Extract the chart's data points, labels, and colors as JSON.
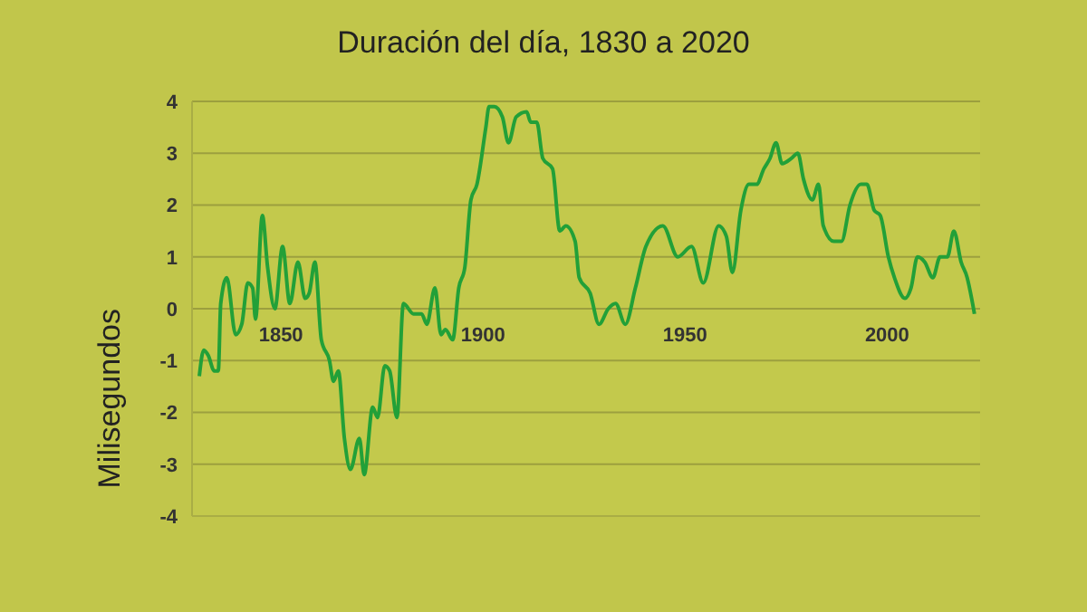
{
  "chart_data": {
    "type": "line",
    "title": "Duración del día, 1830 a 2020",
    "ylabel": "Milisegundos",
    "x": [
      1829.8,
      1830.9,
      1832,
      1833.5,
      1834.5,
      1835.1,
      1836.6,
      1838.8,
      1840.3,
      1841.8,
      1843,
      1843.7,
      1845.4,
      1846.7,
      1848.5,
      1850.4,
      1852.2,
      1854.2,
      1856,
      1857,
      1858.4,
      1860,
      1862,
      1863,
      1864.2,
      1865.7,
      1867.2,
      1869.4,
      1870.6,
      1872.7,
      1873.9,
      1875.7,
      1876.9,
      1878.7,
      1880.3,
      1882.8,
      1884.8,
      1886.1,
      1888.1,
      1889.6,
      1890.7,
      1892.5,
      1894,
      1895.5,
      1897,
      1898.5,
      1900.7,
      1901.5,
      1902.8,
      1904.8,
      1906.3,
      1908.2,
      1910.8,
      1911.8,
      1913.3,
      1914.8,
      1917.2,
      1919,
      1920.5,
      1922.8,
      1923.8,
      1926.5,
      1928.7,
      1931,
      1932.8,
      1935.2,
      1937.7,
      1940.3,
      1944.5,
      1948.2,
      1951.6,
      1954.5,
      1958.3,
      1960.2,
      1961.7,
      1963.8,
      1965.8,
      1967.7,
      1969.5,
      1971,
      1972.5,
      1974,
      1976.3,
      1977.9,
      1979.3,
      1981.5,
      1983,
      1984.2,
      1986.8,
      1988.7,
      1990.8,
      1993.5,
      1995,
      1996.8,
      1998.3,
      2000.3,
      2001.8,
      2004.4,
      2005.9,
      2007.5,
      2009.3,
      2011.3,
      2013.1,
      2014.9,
      2016.5,
      2018.3,
      2019.8,
      2020.9,
      2021.6
    ],
    "series": [
      {
        "color": "#22a038",
        "values": [
          -1.3,
          -0.8,
          -0.9,
          -1.2,
          -1.2,
          0.1,
          0.6,
          -0.5,
          -0.3,
          0.5,
          0.4,
          -0.2,
          1.8,
          0.8,
          0,
          1.2,
          0.1,
          0.9,
          0.2,
          0.3,
          0.9,
          -0.6,
          -1,
          -1.4,
          -1.2,
          -2.5,
          -3.1,
          -2.5,
          -3.2,
          -1.9,
          -2.1,
          -1.1,
          -1.2,
          -2.1,
          0.1,
          -0.1,
          -0.1,
          -0.3,
          0.4,
          -0.5,
          -0.4,
          -0.6,
          0.4,
          0.8,
          2.1,
          2.4,
          3.5,
          3.9,
          3.9,
          3.7,
          3.2,
          3.7,
          3.8,
          3.6,
          3.6,
          2.9,
          2.7,
          1.5,
          1.6,
          1.3,
          0.6,
          0.3,
          -0.3,
          0,
          0.1,
          -0.3,
          0.4,
          1.2,
          1.6,
          1,
          1.2,
          0.5,
          1.6,
          1.4,
          0.7,
          1.9,
          2.4,
          2.4,
          2.7,
          2.9,
          3.2,
          2.8,
          2.9,
          3,
          2.5,
          2.1,
          2.4,
          1.6,
          1.3,
          1.3,
          2,
          2.4,
          2.4,
          1.9,
          1.8,
          1,
          0.6,
          0.2,
          0.4,
          1,
          0.9,
          0.6,
          1,
          1,
          1.5,
          0.9,
          0.6,
          0.2,
          -0.1
        ]
      }
    ],
    "xlim": [
      1828,
      2023
    ],
    "xticks": [
      1850,
      1900,
      1950,
      2000
    ],
    "ylim": [
      -4,
      4
    ],
    "yticks": [
      -4,
      -3,
      -2,
      -1,
      0,
      1,
      2,
      3,
      4
    ],
    "grid": "y",
    "marker": "none",
    "line_style": "solid"
  }
}
